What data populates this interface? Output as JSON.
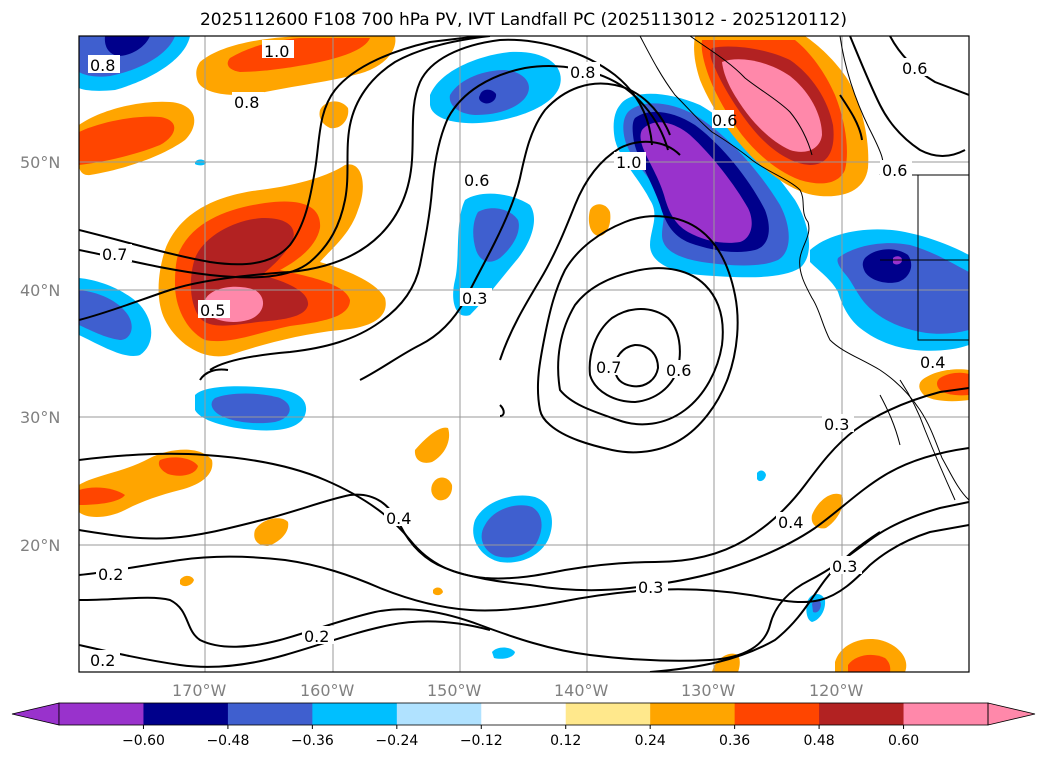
{
  "title": "2025112600 F108 700 hPa PV, IVT Landfall PC (2025113012 - 2025120112)",
  "axes": {
    "lat_ticks": [
      "50°N",
      "40°N",
      "30°N",
      "20°N"
    ],
    "lon_ticks": [
      "170°W",
      "160°W",
      "150°W",
      "140°W",
      "130°W",
      "120°W"
    ]
  },
  "contour_labels": [
    "0.8",
    "1.0",
    "0.8",
    "0.8",
    "0.6",
    "0.6",
    "0.7",
    "0.5",
    "0.6",
    "1.0",
    "0.3",
    "0.7",
    "0.6",
    "0.3",
    "0.4",
    "0.4",
    "0.4",
    "0.3",
    "0.3",
    "0.2",
    "0.2",
    "0.2",
    "0.6"
  ],
  "colorbar": {
    "ticks": [
      "−0.60",
      "−0.48",
      "−0.36",
      "−0.24",
      "−0.12",
      "0.12",
      "0.24",
      "0.36",
      "0.48",
      "0.60"
    ],
    "colors": [
      "#9932cc",
      "#00008b",
      "#3f5fcf",
      "#00bfff",
      "#b0e2ff",
      "#ffffff",
      "#ffe88c",
      "#ffa500",
      "#ff4500",
      "#b22222",
      "#ff88aa",
      "#ff88aa"
    ]
  },
  "fill_colors": {
    "neg1": "#00bfff",
    "neg2": "#3f5fcf",
    "neg3": "#00008b",
    "neg4": "#9932cc",
    "pos1": "#ffa500",
    "pos2": "#ff4500",
    "pos3": "#b22222",
    "pos4": "#ff88aa"
  }
}
